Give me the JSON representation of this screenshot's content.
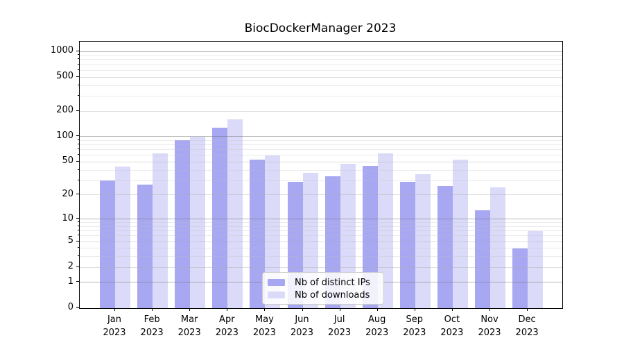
{
  "title": "BiocDockerManager 2023",
  "year_label": "2023",
  "colors": {
    "distinct_ips_bar": "#a8a8f2",
    "downloads_bar": "#dbdbf9",
    "axis": "#000000",
    "grid_major": "#b5b5b5",
    "grid_minor": "#e9e9e9",
    "legend_border": "#cccccc",
    "background": "#ffffff"
  },
  "chart_data": {
    "type": "bar",
    "title": "BiocDockerManager 2023",
    "categories": [
      "Jan",
      "Feb",
      "Mar",
      "Apr",
      "May",
      "Jun",
      "Jul",
      "Aug",
      "Sep",
      "Oct",
      "Nov",
      "Dec"
    ],
    "category_year": "2023",
    "series": [
      {
        "name": "Nb of distinct IPs",
        "color": "#a8a8f2",
        "values": [
          30,
          27,
          90,
          127,
          53,
          29,
          34,
          45,
          29,
          26,
          13,
          4
        ]
      },
      {
        "name": "Nb of downloads",
        "color": "#dbdbf9",
        "values": [
          44,
          63,
          100,
          160,
          60,
          37,
          48,
          63,
          36,
          53,
          25,
          7
        ]
      }
    ],
    "xlabel": "",
    "ylabel": "",
    "yscale": "log1p",
    "ylim": [
      0,
      1300
    ],
    "yticks": [
      0,
      1,
      2,
      5,
      10,
      20,
      50,
      100,
      200,
      500,
      1000
    ],
    "grid": "on",
    "legend_position": "lower center"
  }
}
